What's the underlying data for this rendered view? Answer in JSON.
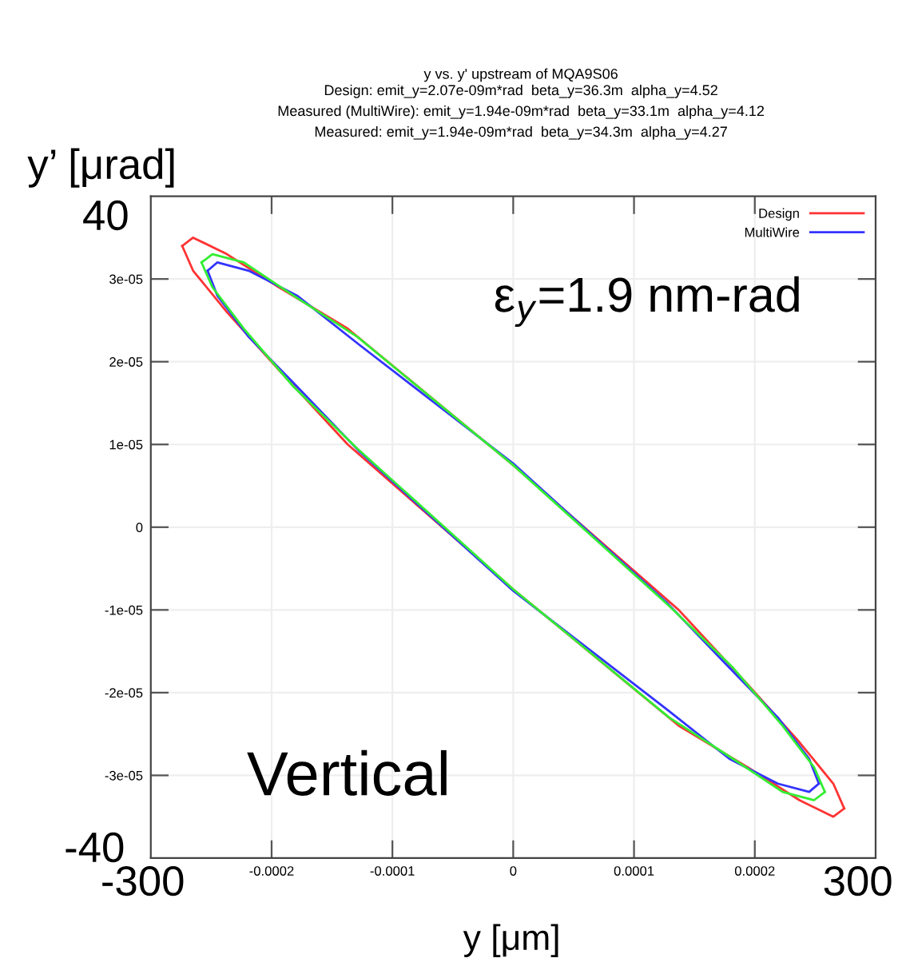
{
  "chart_data": {
    "type": "line",
    "title": "y vs. y' upstream of MQA9S06",
    "subtitle": "Design: emit_y=2.07e-09m*rad  beta_y=36.3m  alpha_y=4.52\nMeasured (MultiWire): emit_y=1.94e-09m*rad  beta_y=33.1m  alpha_y=4.12\nMeasured: emit_y=1.94e-09m*rad  beta_y=34.3m  alpha_y=4.27",
    "xlabel": "y [μm]",
    "ylabel": "y’ [μrad]",
    "xlim": [
      -0.0003,
      0.0003
    ],
    "ylim": [
      -4e-05,
      4e-05
    ],
    "xticks": [
      -0.0002,
      -0.0001,
      0,
      0.0001,
      0.0002
    ],
    "yticks": [
      -3e-05,
      -2e-05,
      -1e-05,
      0,
      1e-05,
      2e-05,
      3e-05
    ],
    "grid": true,
    "legend": "top right",
    "marker": "none",
    "line_style": "solid",
    "annotations": [
      "ε$_{y}$=1.9 nm-rad",
      "Vertical",
      "40",
      "-40",
      "-300",
      "300"
    ],
    "series": [
      {
        "name": "Design",
        "color": "#ff3333",
        "x": [
          -0.000274,
          -0.000265,
          -0.000237,
          -0.000194,
          -0.000137,
          0,
          0.000137,
          0.000194,
          0.000237,
          0.000265,
          0.000274
        ],
        "values": [
          3.4e-05,
          3.5e-05,
          3.3e-05,
          2.9e-05,
          2.4e-05,
          7.5e-06,
          -1e-05,
          -1.9e-05,
          -2.6e-05,
          -3.1e-05,
          -3.4e-05
        ]
      },
      {
        "color": "#ff3333",
        "x": [
          -0.000274,
          -0.000265,
          -0.000237,
          -0.000194,
          -0.000137,
          0,
          0.000137,
          0.000194,
          0.000237,
          0.000265,
          0.000274
        ],
        "values": [
          3.4e-05,
          3.1e-05,
          2.6e-05,
          1.9e-05,
          1e-05,
          -7.5e-06,
          -2.4e-05,
          -2.9e-05,
          -3.3e-05,
          -3.5e-05,
          -3.4e-05
        ]
      },
      {
        "name": "MultiWire",
        "color": "#3333ff",
        "x": [
          -0.000253,
          -0.000245,
          -0.000219,
          -0.000179,
          -0.000127,
          0,
          0.000127,
          0.000179,
          0.000219,
          0.000245,
          0.000253
        ],
        "values": [
          3.1e-05,
          3.2e-05,
          3.1e-05,
          2.8e-05,
          2.2e-05,
          7.7e-06,
          -9.1e-06,
          -1.7e-05,
          -2.3e-05,
          -2.8e-05,
          -3.1e-05
        ]
      },
      {
        "color": "#3333ff",
        "x": [
          -0.000253,
          -0.000245,
          -0.000219,
          -0.000179,
          -0.000127,
          0,
          0.000127,
          0.000179,
          0.000219,
          0.000245,
          0.000253
        ],
        "values": [
          3.1e-05,
          2.8e-05,
          2.3e-05,
          1.7e-05,
          9.1e-06,
          -7.7e-06,
          -2.2e-05,
          -2.8e-05,
          -3.1e-05,
          -3.2e-05,
          -3.1e-05
        ]
      },
      {
        "color": "#33ee33",
        "x": [
          -0.000258,
          -0.000249,
          -0.000223,
          -0.000182,
          -0.000129,
          0,
          0.000129,
          0.000182,
          0.000223,
          0.000249,
          0.000258
        ],
        "values": [
          3.2e-05,
          3.3e-05,
          3.2e-05,
          2.8e-05,
          2.3e-05,
          7.5e-06,
          -9.5e-06,
          -1.7e-05,
          -2.4e-05,
          -2.9e-05,
          -3.2e-05
        ]
      },
      {
        "color": "#33ee33",
        "x": [
          -0.000258,
          -0.000249,
          -0.000223,
          -0.000182,
          -0.000129,
          0,
          0.000129,
          0.000182,
          0.000223,
          0.000249,
          0.000258
        ],
        "values": [
          3.2e-05,
          2.9e-05,
          2.4e-05,
          1.7e-05,
          9.5e-06,
          -7.5e-06,
          -2.3e-05,
          -2.8e-05,
          -3.2e-05,
          -3.3e-05,
          -3.2e-05
        ]
      }
    ]
  }
}
